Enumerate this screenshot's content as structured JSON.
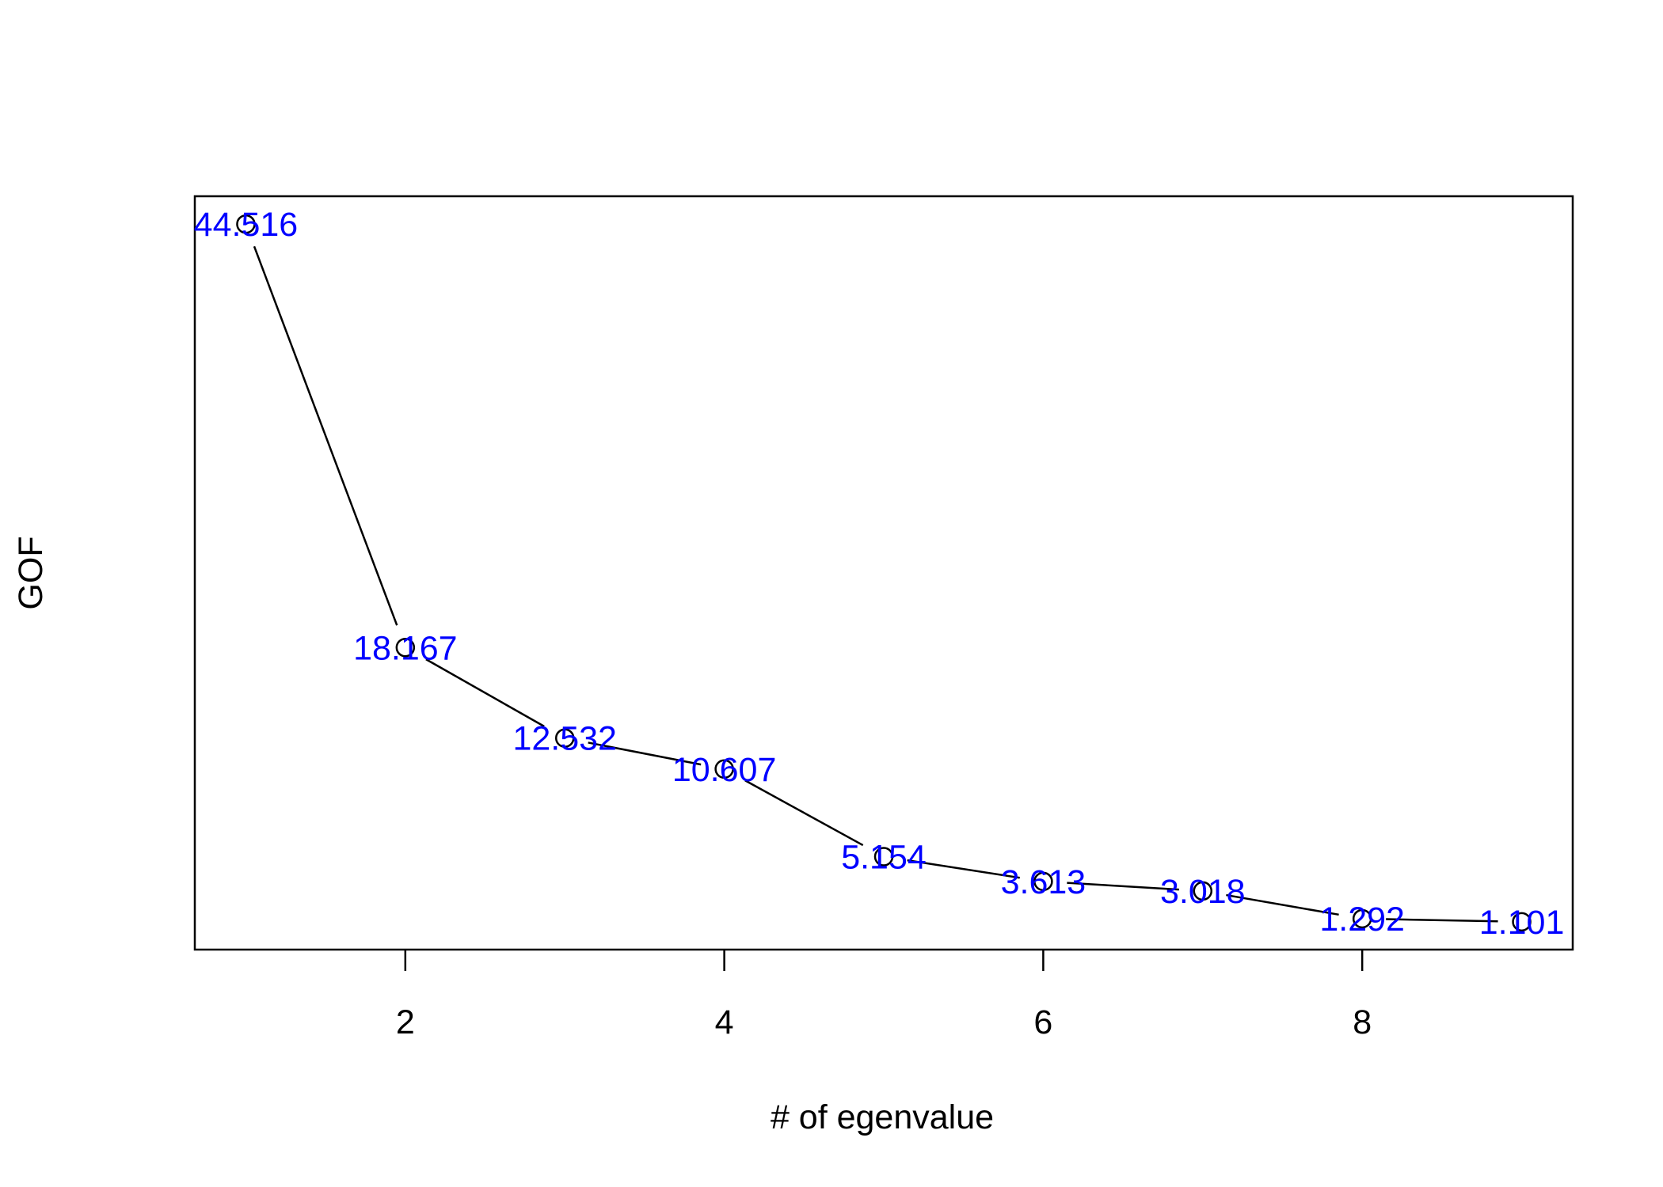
{
  "chart_data": {
    "type": "line",
    "x": [
      1,
      2,
      3,
      4,
      5,
      6,
      7,
      8,
      9
    ],
    "series": [
      {
        "values": [
          44.516,
          18.167,
          12.532,
          10.607,
          5.154,
          3.613,
          3.018,
          1.292,
          1.101
        ],
        "data_labels": [
          "44.516",
          "18.167",
          "12.532",
          "10.607",
          "5.154",
          "3.613",
          "3.018",
          "1.292",
          "1.101"
        ],
        "marker": "open-circle",
        "line_color": "#000000",
        "label_color": "#0000ff"
      }
    ],
    "title": "",
    "xlabel": "# of egenvalue",
    "ylabel": "GOF",
    "xlim": [
      0.68,
      9.32
    ],
    "ylim": [
      -0.63,
      46.25
    ],
    "xticks": [
      2,
      4,
      6,
      8
    ],
    "xtick_labels": [
      "2",
      "4",
      "6",
      "8"
    ],
    "yticks": [],
    "grid": false,
    "legend": "none"
  }
}
